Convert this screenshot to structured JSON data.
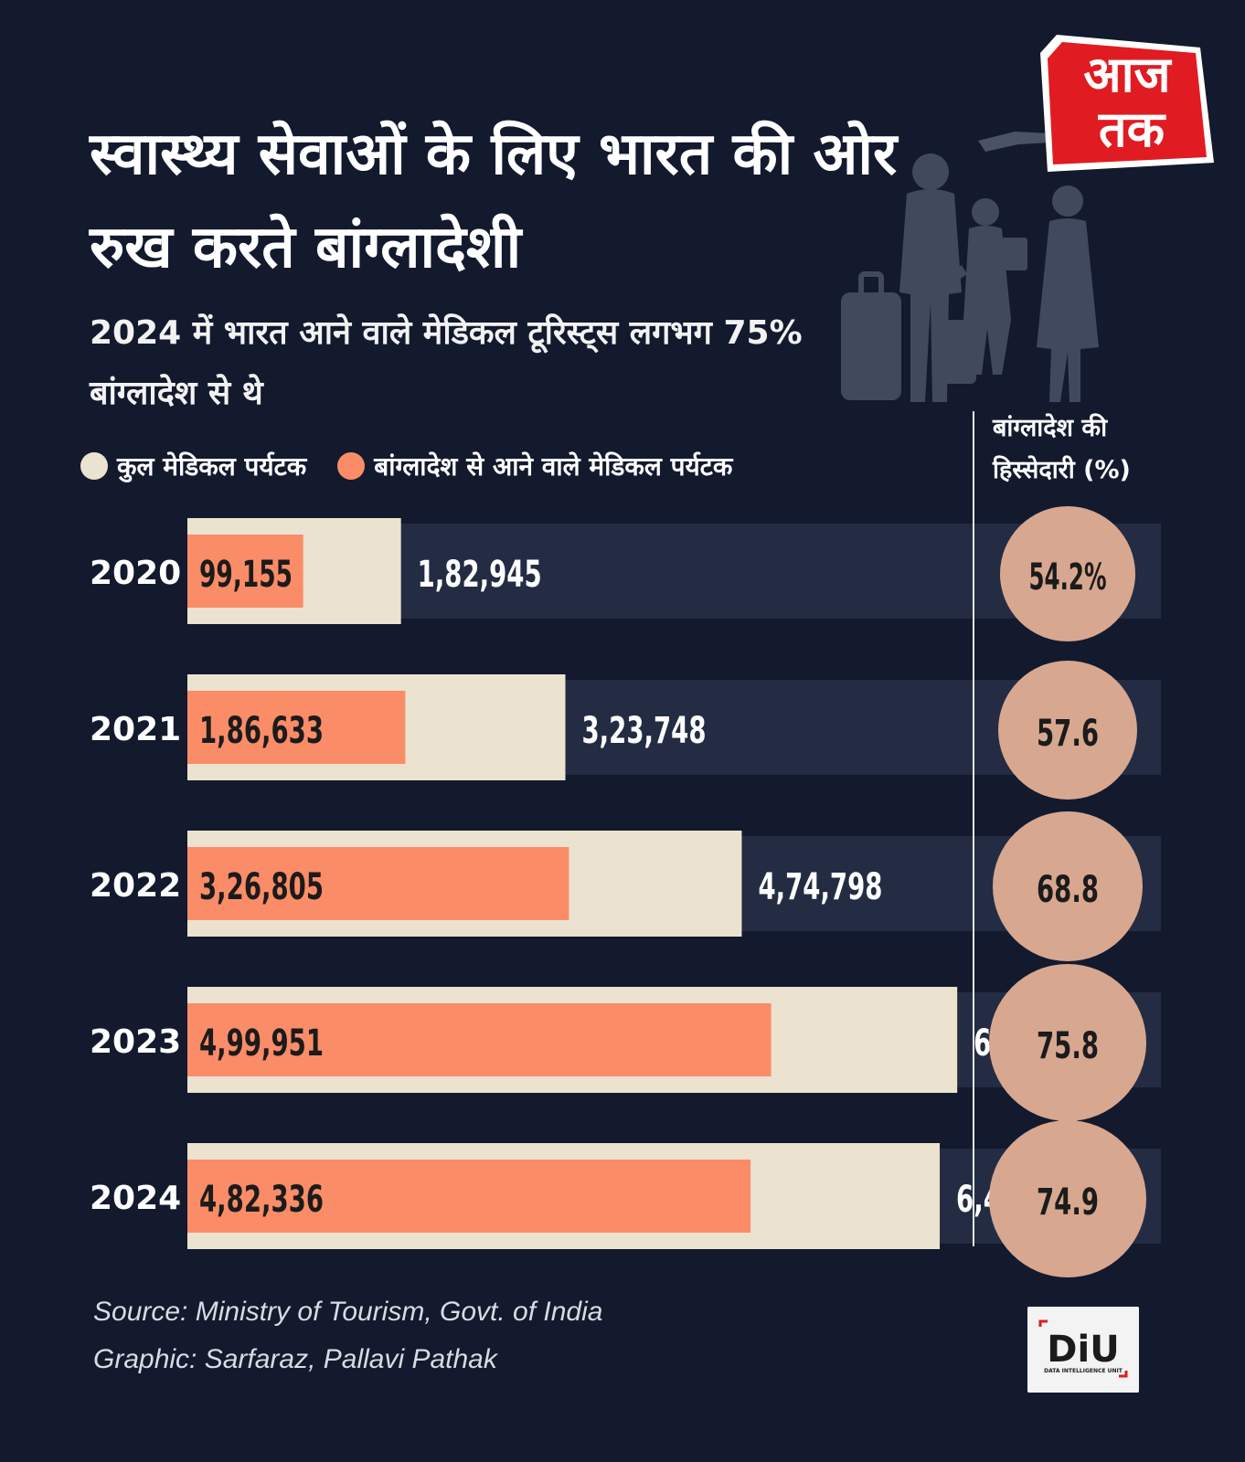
{
  "title": "स्वास्थ्य सेवाओं के लिए भारत की ओर रुख करते बांग्लादेशी",
  "subtitle": "2024 में भारत आने वाले मेडिकल टूरिस्ट्स लगभग 75% बांग्लादेश से थे",
  "logo": {
    "line1": "आज",
    "line2": "तक"
  },
  "legend": {
    "total_label": "कुल मेडिकल पर्यटक",
    "bangladesh_label": "बांग्लादेश से आने वाले मेडिकल पर्यटक"
  },
  "share_header": "बांग्लादेश की हिस्सेदारी (%)",
  "source": "Source: Ministry of Tourism, Govt. of India",
  "credit": "Graphic:  Sarfaraz, Pallavi Pathak",
  "diu": {
    "logo_text": "DiU",
    "caption": "DATA INTELLIGENCE UNIT"
  },
  "colors": {
    "background": "#131a2e",
    "track": "#232c42",
    "total": "#ebe3cf",
    "bangladesh": "#fb8c68",
    "share_circle": "#d8a790",
    "logo_red": "#e11b22"
  },
  "chart_data": {
    "type": "bar",
    "orientation": "horizontal",
    "categories": [
      "2020",
      "2021",
      "2022",
      "2023",
      "2024"
    ],
    "series": [
      {
        "name": "कुल मेडिकल पर्यटक",
        "values": [
          182945,
          323748,
          474798,
          659356,
          644387
        ],
        "labels": [
          "1,82,945",
          "3,23,748",
          "4,74,798",
          "6,59,356",
          "6,44,387"
        ]
      },
      {
        "name": "बांग्लादेश से आने वाले मेडिकल पर्यटक",
        "values": [
          99155,
          186633,
          326805,
          499951,
          482336
        ],
        "labels": [
          "99,155",
          "1,86,633",
          "3,26,805",
          "4,99,951",
          "4,82,336"
        ]
      }
    ],
    "share": {
      "name": "बांग्लादेश की हिस्सेदारी (%)",
      "values": [
        54.2,
        57.6,
        68.8,
        75.8,
        74.9
      ],
      "labels": [
        "54.2%",
        "57.6",
        "68.8",
        "75.8",
        "74.9"
      ]
    },
    "xlim": [
      0,
      660000
    ],
    "legend": "top-left"
  }
}
